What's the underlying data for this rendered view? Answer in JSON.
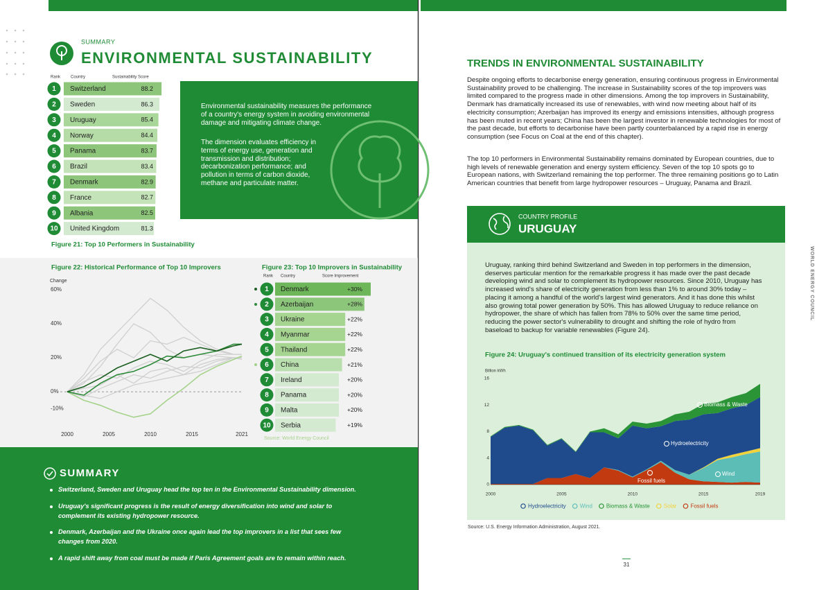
{
  "left_page": {
    "header": {
      "kicker": "SUMMARY",
      "title": "ENVIRONMENTAL SUSTAINABILITY"
    },
    "figure21": {
      "columns": [
        "Rank",
        "Country",
        "Sustainability Score"
      ],
      "rows": [
        {
          "rank": 1,
          "country": "Switzerland",
          "score": 88.2
        },
        {
          "rank": 2,
          "country": "Sweden",
          "score": 86.3
        },
        {
          "rank": 3,
          "country": "Uruguay",
          "score": 85.4
        },
        {
          "rank": 4,
          "country": "Norway",
          "score": 84.4
        },
        {
          "rank": 5,
          "country": "Panama",
          "score": 83.7
        },
        {
          "rank": 6,
          "country": "Brazil",
          "score": 83.4
        },
        {
          "rank": 7,
          "country": "Denmark",
          "score": 82.9
        },
        {
          "rank": 8,
          "country": "France",
          "score": 82.7
        },
        {
          "rank": 9,
          "country": "Albania",
          "score": 82.5
        },
        {
          "rank": 10,
          "country": "United Kingdom",
          "score": 81.3
        }
      ],
      "caption": "Figure 21:  Top 10 Performers in Sustainability"
    },
    "definition": {
      "paragraphs": [
        "Environmental sustainability measures the performance of a country's energy system in avoiding environmental damage and mitigating climate change.",
        "The dimension evaluates efficiency in terms of energy use, generation and transmission and distribution; decarbonization performance; and pollution in terms of carbon dioxide, methane and particulate matter."
      ]
    },
    "figure22": {
      "chart_data": {
        "type": "line",
        "title": "Figure 22:  Historical Performance of Top 10 Improvers",
        "y_label": "Change",
        "x": [
          2000,
          2002,
          2004,
          2006,
          2008,
          2010,
          2012,
          2014,
          2016,
          2018,
          2020,
          2021
        ],
        "xlim": [
          2000,
          2021
        ],
        "xticks": [
          2000,
          2005,
          2010,
          2015,
          2021
        ],
        "ylim": [
          -22,
          60
        ],
        "yticks": [
          {
            "value": -10,
            "label": "-10%"
          },
          {
            "value": 0,
            "label": "0%"
          },
          {
            "value": 20,
            "label": "20%"
          },
          {
            "value": 40,
            "label": "40%"
          },
          {
            "value": 60,
            "label": "60%"
          }
        ],
        "series": [
          {
            "color": "#cfcfcf",
            "values": [
              0,
              10,
              25,
              35,
              45,
              55,
              48,
              38,
              30,
              25,
              22,
              22
            ]
          },
          {
            "color": "#cfcfcf",
            "values": [
              0,
              5,
              15,
              28,
              40,
              35,
              25,
              20,
              22,
              21,
              20,
              20
            ]
          },
          {
            "color": "#cfcfcf",
            "values": [
              0,
              8,
              18,
              25,
              20,
              30,
              28,
              32,
              28,
              24,
              22,
              22
            ]
          },
          {
            "color": "#cfcfcf",
            "values": [
              0,
              -3,
              2,
              6,
              10,
              8,
              12,
              15,
              14,
              18,
              20,
              20
            ]
          },
          {
            "color": "#cfcfcf",
            "values": [
              0,
              2,
              4,
              10,
              5,
              12,
              14,
              10,
              16,
              19,
              20,
              19
            ]
          },
          {
            "color": "#cfcfcf",
            "values": [
              0,
              6,
              10,
              8,
              14,
              18,
              16,
              12,
              18,
              22,
              22,
              22
            ]
          },
          {
            "color": "#cfcfcf",
            "values": [
              0,
              -2,
              -4,
              0,
              4,
              6,
              8,
              10,
              12,
              16,
              20,
              20
            ]
          },
          {
            "color": "#a5d28a",
            "values": [
              0,
              -5,
              -8,
              -12,
              -15,
              -13,
              -5,
              2,
              10,
              15,
              19,
              21
            ]
          },
          {
            "color": "#2e8b3a",
            "values": [
              0,
              -2,
              5,
              10,
              12,
              16,
              21,
              20,
              22,
              24,
              28,
              28
            ]
          },
          {
            "color": "#1b5e20",
            "values": [
              0,
              3,
              8,
              14,
              18,
              22,
              18,
              24,
              26,
              24,
              27,
              28
            ]
          }
        ]
      }
    },
    "figure23": {
      "title": "Figure 23:  Top 10 Improvers in Sustainability",
      "columns": [
        "Rank",
        "Country",
        "Score Improvement"
      ],
      "rows": [
        {
          "rank": 1,
          "country": "Denmark",
          "value": 30,
          "value_label": "+30%"
        },
        {
          "rank": 2,
          "country": "Azerbaijan",
          "value": 28,
          "value_label": "+28%"
        },
        {
          "rank": 3,
          "country": "Ukraine",
          "value": 22,
          "value_label": "+22%"
        },
        {
          "rank": 4,
          "country": "Myanmar",
          "value": 22,
          "value_label": "+22%"
        },
        {
          "rank": 5,
          "country": "Thailand",
          "value": 22,
          "value_label": "+22%"
        },
        {
          "rank": 6,
          "country": "China",
          "value": 21,
          "value_label": "+21%"
        },
        {
          "rank": 7,
          "country": "Ireland",
          "value": 20,
          "value_label": "+20%"
        },
        {
          "rank": 8,
          "country": "Panama",
          "value": 20,
          "value_label": "+20%"
        },
        {
          "rank": 9,
          "country": "Malta",
          "value": 20,
          "value_label": "+20%"
        },
        {
          "rank": 10,
          "country": "Serbia",
          "value": 19,
          "value_label": "+19%"
        }
      ],
      "source": "Source: World Energy Council"
    },
    "summary": {
      "title": "SUMMARY",
      "bullets": [
        "Switzerland, Sweden and Uruguay head the top ten in the Environmental Sustainability dimension.",
        "Uruguay's significant progress is the result of energy diversification into wind and solar to complement its existing hydropower resource.",
        "Denmark, Azerbaijan and the Ukraine once again lead the top improvers in a list that sees few changes from 2020.",
        "A rapid shift away from coal must be made if Paris Agreement goals are to remain within reach."
      ]
    }
  },
  "right_page": {
    "title": "TRENDS IN ENVIRONMENTAL SUSTAINABILITY",
    "paragraphs": [
      "Despite ongoing efforts to decarbonise energy generation, ensuring continuous progress in Environmental Sustainability proved to be challenging. The increase in Sustainability scores of the top improvers was limited compared to the progress made in other dimensions. Among the top improvers in Sustainability, Denmark has dramatically increased its use of renewables, with wind now meeting about half of its electricity consumption; Azerbaijan has improved its energy and emissions intensities, although progress has been muted in recent years; China has been the largest investor in renewable technologies for most of the past decade, but efforts to decarbonise have been partly counterbalanced by a rapid rise in energy consumption (see Focus on Coal at the end of this chapter).",
      "The top 10 performers in Environmental Sustainability remains dominated by European countries, due to high levels of renewable generation and energy system efficiency. Seven of the top 10 spots go to European nations, with Switzerland remaining the top performer. The three remaining positions go to Latin American countries that benefit from large hydropower resources – Uruguay, Panama and Brazil."
    ],
    "profile": {
      "kicker": "COUNTRY PROFILE",
      "title": "URUGUAY",
      "text": "Uruguay, ranking third behind Switzerland and Sweden in top performers in the dimension, deserves particular mention for the remarkable progress it has made over the past decade developing wind and solar to complement its hydropower resources. Since 2010, Uruguay has increased wind's share of electricity generation from less than 1% to around 30% today – placing it among a handful of the world's largest wind generators. And it has done this whilst also growing total power generation by 50%. This has allowed Uruguay to reduce reliance on hydropower, the share of which has fallen from 78% to 50% over the same time period, reducing the power sector's vulnerability to drought and shifting the role of hydro from baseload to backup for variable renewables (Figure 24).",
      "figure24": {
        "chart_data": {
          "type": "stacked_area",
          "title": "Figure 24:  Uruguay's continued transition of its electricity generation system",
          "y_label": "Billion kWh",
          "x": [
            2000,
            2001,
            2002,
            2003,
            2004,
            2005,
            2006,
            2007,
            2008,
            2009,
            2010,
            2011,
            2012,
            2013,
            2014,
            2015,
            2016,
            2017,
            2018,
            2019
          ],
          "xlim": [
            2000,
            2019
          ],
          "xticks": [
            2000,
            2005,
            2010,
            2015,
            2019
          ],
          "ylim": [
            0,
            16
          ],
          "yticks": [
            0,
            4,
            8,
            12,
            16
          ],
          "series": [
            {
              "name": "Hydroelectricity",
              "color": "#1f4b8c",
              "values": [
                7.1,
                8.5,
                8.8,
                8.1,
                4.9,
                5.9,
                3.3,
                6.9,
                5.3,
                4.8,
                7.7,
                6.2,
                5.2,
                7.4,
                8.3,
                8.0,
                6.9,
                7.0,
                7.0,
                7.7
              ]
            },
            {
              "name": "Wind",
              "color": "#5cbcb6",
              "values": [
                0,
                0,
                0,
                0,
                0,
                0,
                0,
                0,
                0,
                0.1,
                0.1,
                0.1,
                0.2,
                0.4,
                0.7,
                2.0,
                3.3,
                3.8,
                4.2,
                4.7
              ]
            },
            {
              "name": "Biomass & Waste",
              "color": "#2a9437",
              "values": [
                0.1,
                0.1,
                0.1,
                0.1,
                0.1,
                0.1,
                0.1,
                0.1,
                0.6,
                0.6,
                0.6,
                0.7,
                0.8,
                1.0,
                1.2,
                1.6,
                1.6,
                1.7,
                1.8,
                2.0
              ]
            },
            {
              "name": "Solar",
              "color": "#f2d23c",
              "values": [
                0,
                0,
                0,
                0,
                0,
                0,
                0,
                0,
                0,
                0,
                0,
                0,
                0,
                0,
                0,
                0.1,
                0.2,
                0.4,
                0.4,
                0.5
              ]
            },
            {
              "name": "Fossil fuels",
              "color": "#c23a10",
              "values": [
                0.1,
                0.1,
                0.1,
                0.1,
                1.0,
                1.0,
                1.6,
                1.0,
                2.6,
                2.1,
                1.1,
                2.2,
                3.4,
                1.8,
                0.8,
                0.5,
                0.4,
                0.3,
                0.4,
                0.3
              ]
            }
          ]
        },
        "source": "Source: U.S. Energy Information Administration, August 2021."
      }
    },
    "running_head": "WORLD ENERGY COUNCIL",
    "page_number": 31
  }
}
